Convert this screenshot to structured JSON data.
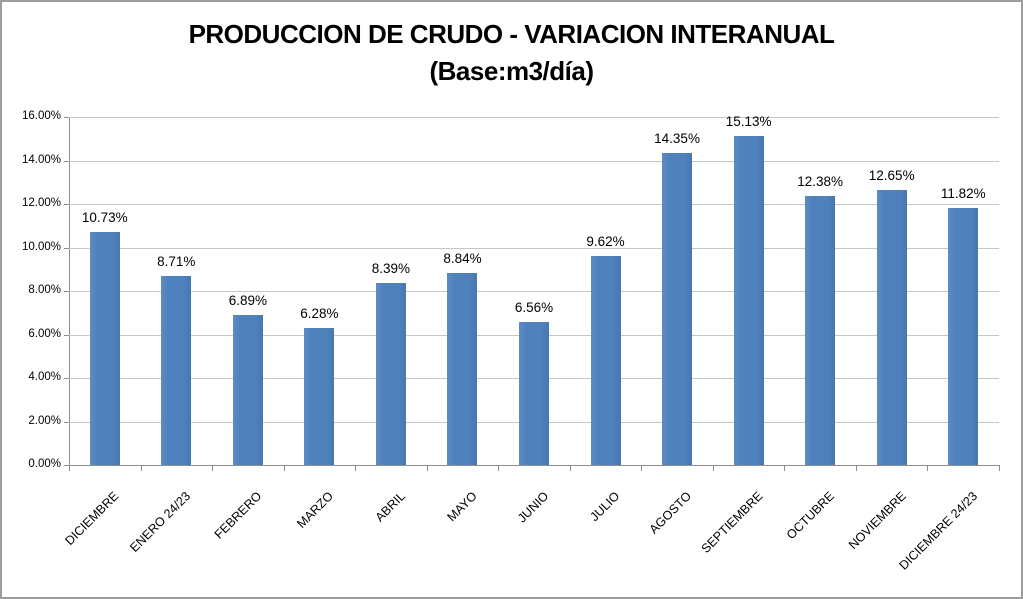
{
  "frame": {
    "background": "#FFFFFF",
    "border_color": "#9C9C9C"
  },
  "chart_data": {
    "type": "bar",
    "title": "PRODUCCION DE CRUDO - VARIACION INTERANUAL",
    "subtitle": "(Base:m3/día)",
    "xlabel": "",
    "ylabel": "",
    "legend": "none",
    "grid": true,
    "categories": [
      "DICIEMBRE",
      "ENERO 24/23",
      "FEBRERO",
      "MARZO",
      "ABRIL",
      "MAYO",
      "JUNIO",
      "JULIO",
      "AGOSTO",
      "SEPTIEMBRE",
      "OCTUBRE",
      "NOVIEMBRE",
      "DICIEMBRE 24/23"
    ],
    "values": [
      10.73,
      8.71,
      6.89,
      6.28,
      8.39,
      8.84,
      6.56,
      9.62,
      14.35,
      15.13,
      12.38,
      12.65,
      11.82
    ],
    "data_labels": [
      "10.73%",
      "8.71%",
      "6.89%",
      "6.28%",
      "8.39%",
      "8.84%",
      "6.56%",
      "9.62%",
      "14.35%",
      "15.13%",
      "12.38%",
      "12.65%",
      "11.82%"
    ],
    "y_tick_labels": [
      "0.00%",
      "2.00%",
      "4.00%",
      "6.00%",
      "8.00%",
      "10.00%",
      "12.00%",
      "14.00%",
      "16.00%"
    ],
    "ylim": [
      0,
      16
    ],
    "y_step": 2,
    "bar_color": "#4F81BD",
    "gridline_color": "#C6C6C6",
    "axis_color": "#8E8E8E",
    "text_color": "#000000"
  }
}
